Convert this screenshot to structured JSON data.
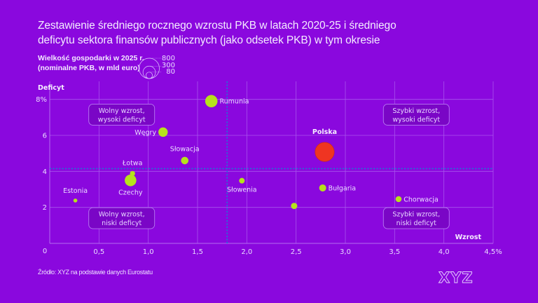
{
  "title": {
    "line1": "Zestawienie średniego rocznego wzrostu PKB w latach 2020-25 i średniego",
    "line2": "deficytu sektora finansów publicznych (jako odsetek PKB) w tym okresie"
  },
  "size_legend": {
    "title_line1": "Wielkość gospodarki w 2025 r.",
    "title_line2": "(nominalne PKB, w mld euro)",
    "values": [
      800,
      300,
      80
    ],
    "labels": [
      "800",
      "300",
      "80"
    ]
  },
  "source": "Źródło: XYZ na podstawie danych Eurostatu",
  "logo": "XYZ",
  "colors": {
    "background": "#8a08de",
    "grid": "#a855ec",
    "bubble": "#b6e21c",
    "highlight": "#ef3522",
    "reference_line": "#1f74d6",
    "quadrant_box": "#7a06c6"
  },
  "chart_data": {
    "type": "scatter",
    "title": "Zestawienie średniego rocznego wzrostu PKB w latach 2020-25 i średniego deficytu sektora finansów publicznych (jako odsetek PKB) w tym okresie",
    "xlabel": "Wzrost",
    "ylabel": "Deficyt",
    "xlim": [
      0,
      4.5
    ],
    "ylim": [
      0,
      9
    ],
    "x_ticks": [
      0,
      0.5,
      1.0,
      1.5,
      2.0,
      2.5,
      3.0,
      3.5,
      4.0,
      4.5
    ],
    "x_tick_labels": [
      "0",
      "0,5",
      "1,0",
      "1,5",
      "2,0",
      "2,5",
      "3,0",
      "3,5",
      "4,0",
      "4,5%"
    ],
    "y_ticks": [
      2,
      4,
      6,
      8
    ],
    "y_tick_labels": [
      "2",
      "4",
      "6",
      "8%"
    ],
    "grid": true,
    "size_unit": "mld euro (nominalne PKB 2025)",
    "reference_lines": {
      "x": 1.8,
      "y": 4.15
    },
    "quadrants": [
      {
        "position": "top-left",
        "line1": "Wolny wzrost,",
        "line2": "wysoki deficyt",
        "x": 0.73,
        "y": 7.15
      },
      {
        "position": "bottom-left",
        "line1": "Wolny wzrost,",
        "line2": "niski deficyt",
        "x": 0.73,
        "y": 1.4
      },
      {
        "position": "top-right",
        "line1": "Szybki wzrost,",
        "line2": "wysoki deficyt",
        "x": 3.72,
        "y": 7.15
      },
      {
        "position": "bottom-right",
        "line1": "Szybki wzrost,",
        "line2": "niski deficyt",
        "x": 3.72,
        "y": 1.4
      }
    ],
    "points": [
      {
        "label": "Rumunia",
        "x": 1.64,
        "y": 7.9,
        "size": 295,
        "label_pos": "right",
        "highlight": false
      },
      {
        "label": "Węgry",
        "x": 1.15,
        "y": 6.18,
        "size": 171,
        "label_pos": "left",
        "highlight": false
      },
      {
        "label": "Słowacja",
        "x": 1.37,
        "y": 4.6,
        "size": 107,
        "label_pos": "top",
        "highlight": false
      },
      {
        "label": "Łotwa",
        "x": 0.84,
        "y": 3.88,
        "size": 52,
        "label_pos": "top",
        "highlight": false
      },
      {
        "label": "Czechy",
        "x": 0.82,
        "y": 3.5,
        "size": 262,
        "label_pos": "bottom",
        "highlight": false
      },
      {
        "label": "Estonia",
        "x": 0.26,
        "y": 2.38,
        "size": 30,
        "label_pos": "top",
        "highlight": false
      },
      {
        "label": "Słowenia",
        "x": 1.95,
        "y": 3.48,
        "size": 61,
        "label_pos": "bottom",
        "highlight": false
      },
      {
        "label": "Polska",
        "x": 2.79,
        "y": 5.08,
        "size": 714,
        "label_pos": "top",
        "highlight": true
      },
      {
        "label": "Bułgaria",
        "x": 2.77,
        "y": 3.08,
        "size": 95,
        "label_pos": "right",
        "highlight": false
      },
      {
        "label": "",
        "x": 2.48,
        "y": 2.08,
        "size": 77,
        "label_pos": "none",
        "highlight": false
      },
      {
        "label": "Chorwacja",
        "x": 3.54,
        "y": 2.46,
        "size": 70,
        "label_pos": "right",
        "highlight": false
      }
    ]
  }
}
